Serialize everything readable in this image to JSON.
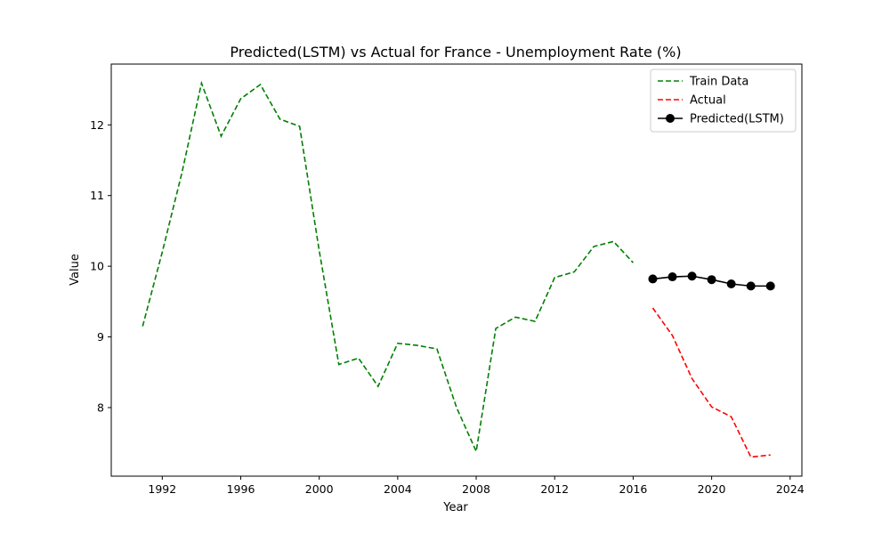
{
  "chart_data": {
    "type": "line",
    "title": "Predicted(LSTM) vs Actual for France - Unemployment Rate (%)",
    "xlabel": "Year",
    "ylabel": "Value",
    "xlim": [
      1989.4,
      2024.6
    ],
    "ylim": [
      7.03,
      12.86
    ],
    "x_ticks": [
      1992,
      1996,
      2000,
      2004,
      2008,
      2012,
      2016,
      2020,
      2024
    ],
    "y_ticks": [
      8,
      9,
      10,
      11,
      12
    ],
    "grid": false,
    "legend_position": "top-right",
    "series": [
      {
        "name": "Train Data",
        "color": "#008000",
        "style": "dashed",
        "marker": "none",
        "x": [
          1991,
          1992,
          1993,
          1994,
          1995,
          1996,
          1997,
          1998,
          1999,
          2000,
          2001,
          2002,
          2003,
          2004,
          2005,
          2006,
          2007,
          2008,
          2009,
          2010,
          2011,
          2012,
          2013,
          2014,
          2015,
          2016
        ],
        "values": [
          9.15,
          10.2,
          11.32,
          12.59,
          11.84,
          12.37,
          12.57,
          12.08,
          11.98,
          10.22,
          8.61,
          8.7,
          8.3,
          8.91,
          8.88,
          8.83,
          8.0,
          7.38,
          9.12,
          9.28,
          9.22,
          9.84,
          9.92,
          10.28,
          10.35,
          10.05
        ]
      },
      {
        "name": "Actual",
        "color": "#ff0000",
        "style": "dashed",
        "marker": "none",
        "x": [
          2017,
          2018,
          2019,
          2020,
          2021,
          2022,
          2023
        ],
        "values": [
          9.41,
          9.02,
          8.41,
          8.01,
          7.87,
          7.3,
          7.33
        ]
      },
      {
        "name": "Predicted(LSTM)",
        "color": "#000000",
        "style": "solid",
        "marker": "circle",
        "x": [
          2017,
          2018,
          2019,
          2020,
          2021,
          2022,
          2023
        ],
        "values": [
          9.82,
          9.85,
          9.86,
          9.81,
          9.75,
          9.72,
          9.72
        ]
      }
    ]
  }
}
